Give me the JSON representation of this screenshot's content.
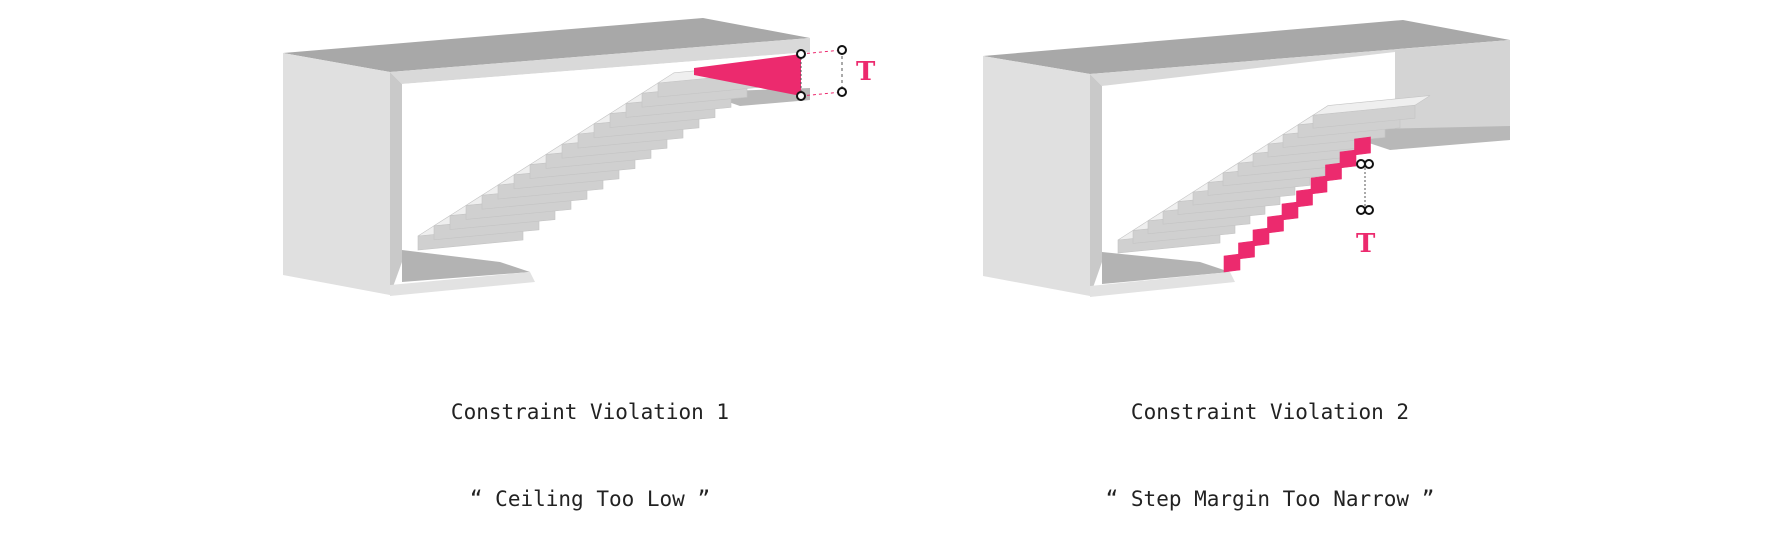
{
  "colors": {
    "accent": "#ec2a6e",
    "box_top": "#a8a8a8",
    "box_face": "#e2e2e2",
    "box_side": "#cfcfcf",
    "box_inner_back": "#d6d6d6",
    "box_floor": "#b5b5b5",
    "step_top": "#efefef",
    "step_front": "#d0d0d0",
    "caption_text": "#222222"
  },
  "figures": [
    {
      "name": "violation-1",
      "title": "Constraint Violation 1",
      "subtitle": "“ Ceiling Too Low ”",
      "marker_label": "T",
      "icon": "staircase-in-box-icon"
    },
    {
      "name": "violation-2",
      "title": "Constraint Violation 2",
      "subtitle": "“ Step Margin Too Narrow ”",
      "marker_label": "T",
      "icon": "staircase-in-box-icon"
    }
  ]
}
